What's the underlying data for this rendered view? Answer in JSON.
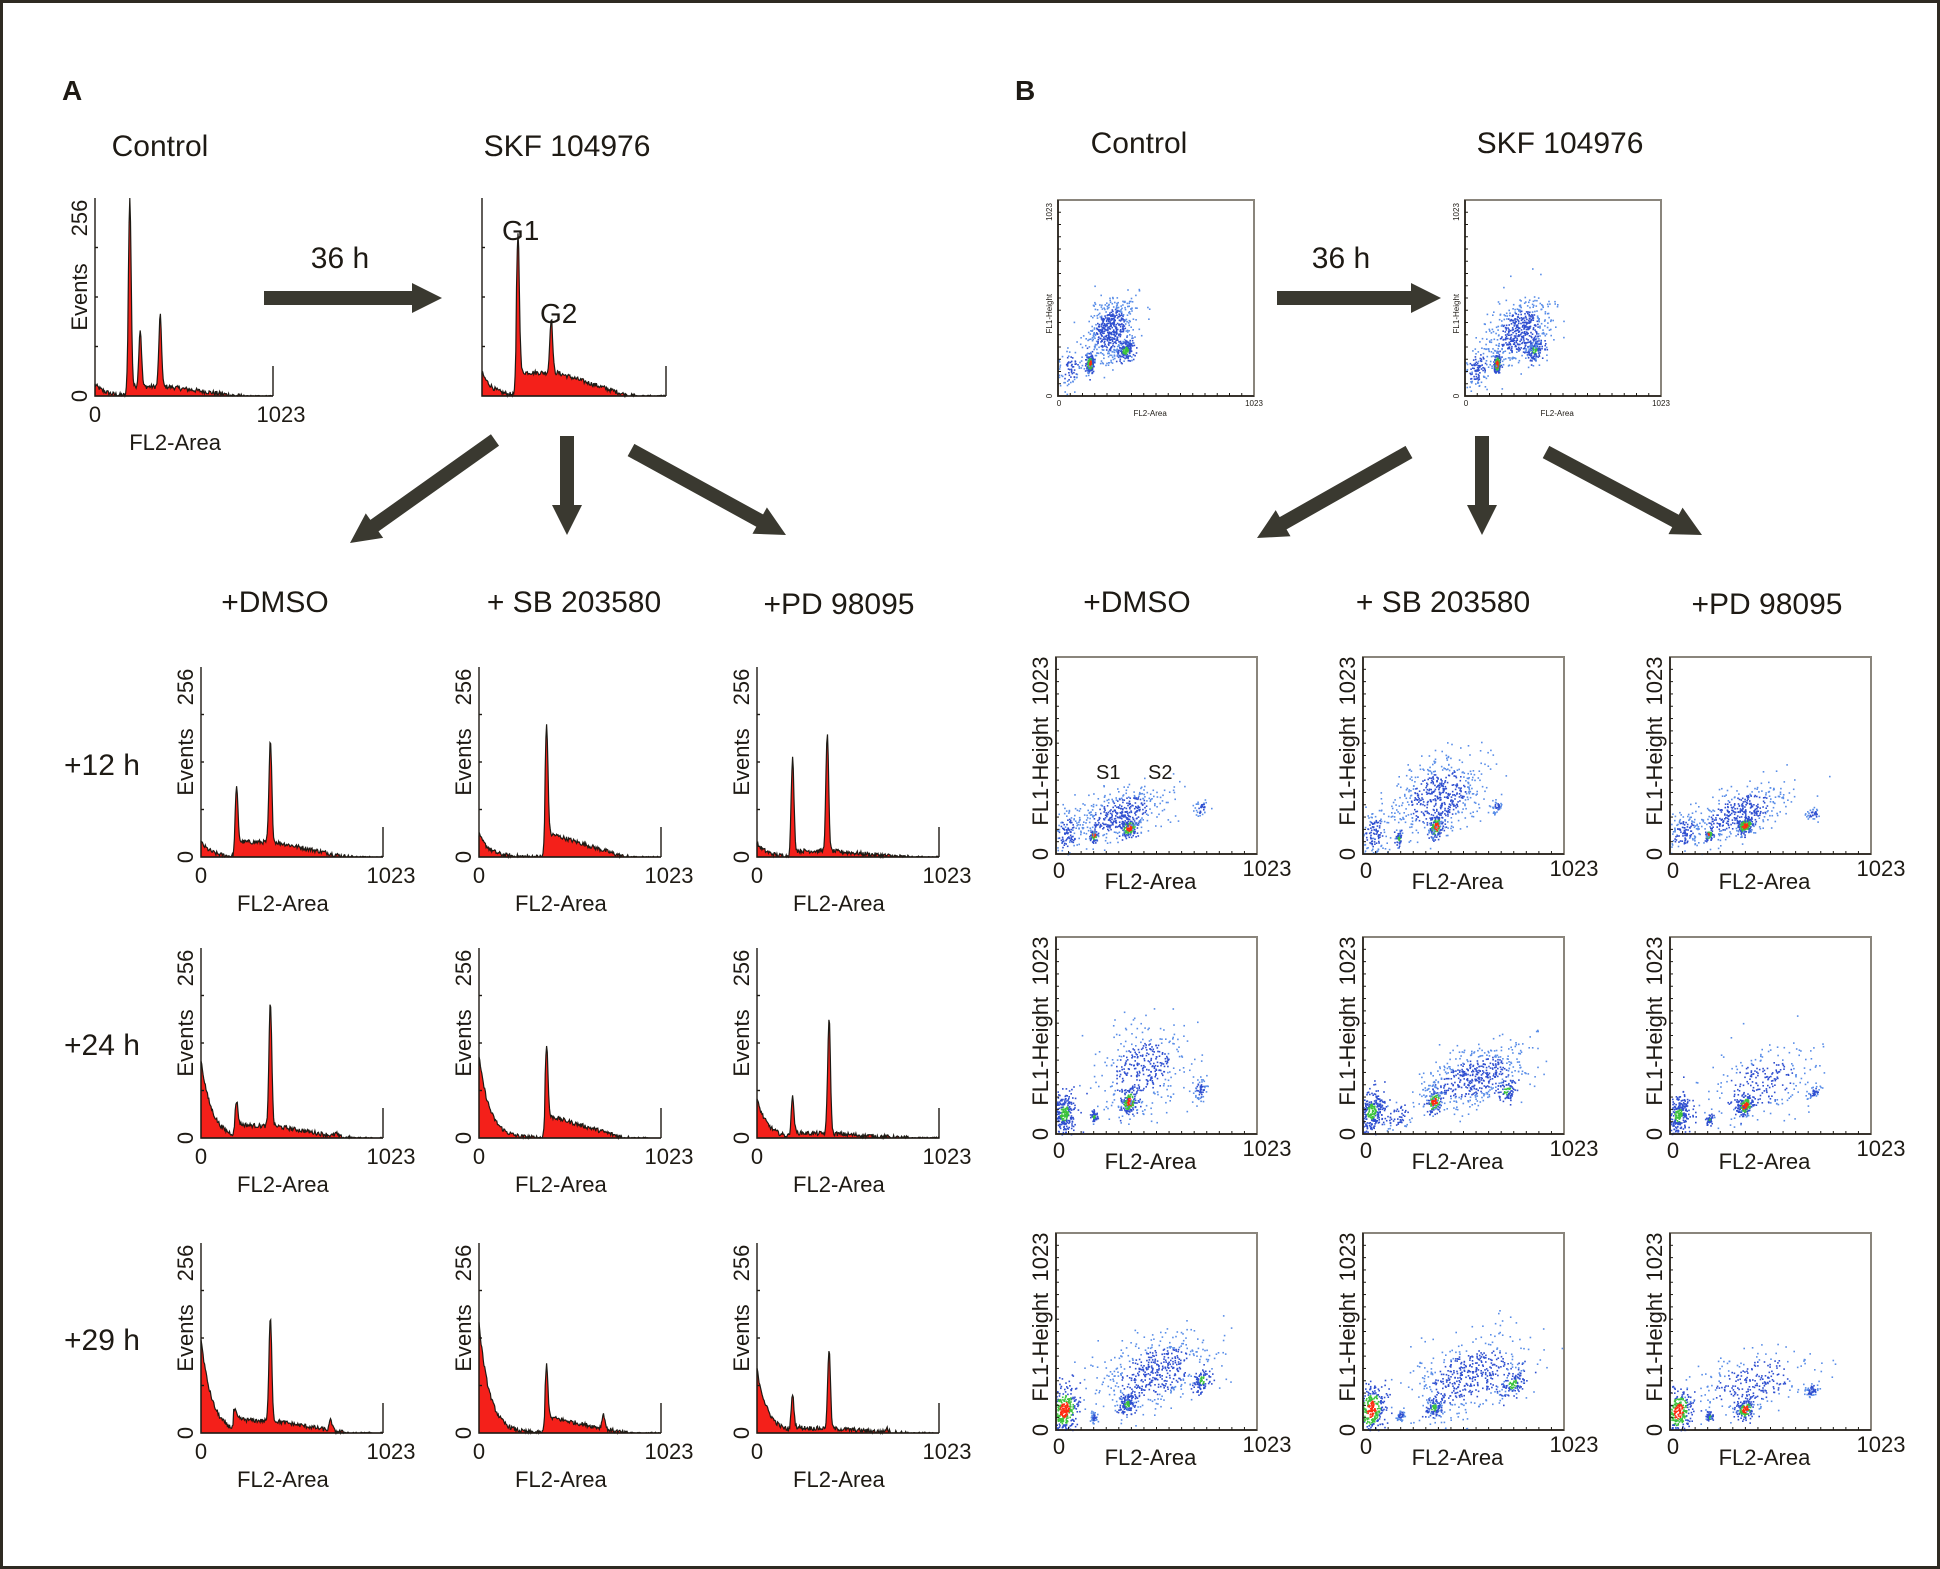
{
  "panel_labels": {
    "a": "A",
    "b": "B"
  },
  "time_label": "36 h",
  "top_titles": {
    "control": "Control",
    "treated": "SKF 104976"
  },
  "column_titles": [
    "+DMSO",
    "+ SB 203580",
    "+PD 98095"
  ],
  "row_labels": [
    "+12 h",
    "+24 h",
    "+29 h"
  ],
  "peak_labels": {
    "g1": "G1",
    "g2": "G2"
  },
  "gate_labels": {
    "s1": "S1",
    "s2": "S2"
  },
  "colors": {
    "histogram_fill": "#f4201a",
    "arrow": "#3a3930",
    "density_low": "#2f4fd0",
    "density_mid": "#3cc23c",
    "density_high": "#ff2a10"
  },
  "chart_data": [
    {
      "panel": "A",
      "type": "area",
      "description": "DNA content histograms (FL2-Area vs Events)",
      "xlabel": "FL2-Area",
      "ylabel": "Events",
      "xlim": [
        0,
        1023
      ],
      "ylim": [
        0,
        256
      ],
      "xticks": [
        "0",
        "1023"
      ],
      "yticks": [
        "0",
        "256"
      ],
      "plots": [
        {
          "id": "control",
          "title": "Control",
          "peaks": [
            {
              "x": 200,
              "y": 250
            },
            {
              "x": 260,
              "y": 80
            },
            {
              "x": 375,
              "y": 98
            }
          ],
          "baseline": 12,
          "subg1": 15
        },
        {
          "id": "skf",
          "title": "SKF 104976",
          "annotations": [
            "G1",
            "G2"
          ],
          "peaks": [
            {
              "x": 200,
              "y": 196
            },
            {
              "x": 385,
              "y": 86
            }
          ],
          "baseline": 30,
          "subg1": 30
        },
        {
          "id": "dmso-12h",
          "column": "+DMSO",
          "row": "+12 h",
          "peaks": [
            {
              "x": 200,
              "y": 82
            },
            {
              "x": 390,
              "y": 146
            }
          ],
          "baseline": 20,
          "subg1": 20
        },
        {
          "id": "sb-12h",
          "column": "+ SB 203580",
          "row": "+12 h",
          "peaks": [
            {
              "x": 380,
              "y": 164
            }
          ],
          "baseline": 30,
          "subg1": 30
        },
        {
          "id": "pd-12h",
          "column": "+PD 98095",
          "row": "+12 h",
          "peaks": [
            {
              "x": 200,
              "y": 128
            },
            {
              "x": 395,
              "y": 160
            }
          ],
          "baseline": 8,
          "subg1": 18
        },
        {
          "id": "dmso-24h",
          "column": "+DMSO",
          "row": "+24 h",
          "peaks": [
            {
              "x": 200,
              "y": 38
            },
            {
              "x": 390,
              "y": 176
            },
            {
              "x": 760,
              "y": 12
            }
          ],
          "baseline": 16,
          "subg1": 106
        },
        {
          "id": "sb-24h",
          "column": "+ SB 203580",
          "row": "+24 h",
          "peaks": [
            {
              "x": 380,
              "y": 112
            }
          ],
          "baseline": 28,
          "subg1": 110
        },
        {
          "id": "pd-24h",
          "column": "+PD 98095",
          "row": "+24 h",
          "peaks": [
            {
              "x": 200,
              "y": 50
            },
            {
              "x": 405,
              "y": 160
            }
          ],
          "baseline": 6,
          "subg1": 52
        },
        {
          "id": "dmso-29h",
          "column": "+DMSO",
          "row": "+29 h",
          "peaks": [
            {
              "x": 190,
              "y": 18
            },
            {
              "x": 390,
              "y": 150
            },
            {
              "x": 730,
              "y": 22
            }
          ],
          "baseline": 16,
          "subg1": 128
        },
        {
          "id": "sb-29h",
          "column": "+ SB 203580",
          "row": "+29 h",
          "peaks": [
            {
              "x": 380,
              "y": 82
            },
            {
              "x": 700,
              "y": 30
            }
          ],
          "baseline": 20,
          "subg1": 148
        },
        {
          "id": "pd-29h",
          "column": "+PD 98095",
          "row": "+29 h",
          "peaks": [
            {
              "x": 200,
              "y": 45
            },
            {
              "x": 405,
              "y": 110
            },
            {
              "x": 730,
              "y": 8
            }
          ],
          "baseline": 6,
          "subg1": 86
        }
      ]
    },
    {
      "panel": "B",
      "type": "scatter",
      "description": "Density dot plots (FL2-Area vs FL1-Height)",
      "xlabel": "FL2-Area",
      "ylabel": "FL1-Height",
      "xlim": [
        0,
        1023
      ],
      "ylim": [
        0,
        1023
      ],
      "xticks": [
        "0",
        "1023"
      ],
      "yticks": [
        "0",
        "1023"
      ],
      "plots": [
        {
          "id": "control",
          "title": "Control",
          "clusters": [
            {
              "x": 165,
              "y": 170,
              "n": 170,
              "sx": 10,
              "sy": 25,
              "d": "high"
            },
            {
              "x": 350,
              "y": 240,
              "n": 160,
              "sx": 24,
              "sy": 28,
              "d": "mid"
            },
            {
              "x": 270,
              "y": 350,
              "n": 520,
              "sx": 60,
              "sy": 80,
              "d": "low"
            },
            {
              "x": 60,
              "y": 150,
              "n": 90,
              "sx": 35,
              "sy": 50,
              "d": "low"
            }
          ]
        },
        {
          "id": "skf",
          "title": "SKF 104976",
          "clusters": [
            {
              "x": 165,
              "y": 170,
              "n": 170,
              "sx": 10,
              "sy": 25,
              "d": "high"
            },
            {
              "x": 360,
              "y": 245,
              "n": 140,
              "sx": 22,
              "sy": 28,
              "d": "mid"
            },
            {
              "x": 280,
              "y": 340,
              "n": 520,
              "sx": 80,
              "sy": 80,
              "d": "low"
            },
            {
              "x": 60,
              "y": 150,
              "n": 110,
              "sx": 35,
              "sy": 55,
              "d": "low"
            }
          ]
        },
        {
          "id": "dmso-12h",
          "column": "+DMSO",
          "row": "+12 h",
          "annotations": [
            "S1",
            "S2"
          ],
          "clusters": [
            {
              "x": 190,
              "y": 100,
              "n": 60,
              "sx": 10,
              "sy": 18,
              "d": "high"
            },
            {
              "x": 370,
              "y": 140,
              "n": 150,
              "sx": 22,
              "sy": 25,
              "d": "high"
            },
            {
              "x": 320,
              "y": 210,
              "n": 420,
              "sx": 110,
              "sy": 60,
              "d": "low"
            },
            {
              "x": 55,
              "y": 110,
              "n": 110,
              "sx": 35,
              "sy": 60,
              "d": "low"
            },
            {
              "x": 740,
              "y": 240,
              "n": 40,
              "sx": 20,
              "sy": 20,
              "d": "low"
            }
          ]
        },
        {
          "id": "sb-12h",
          "column": "+ SB 203580",
          "row": "+12 h",
          "clusters": [
            {
              "x": 180,
              "y": 85,
              "n": 50,
              "sx": 10,
              "sy": 20,
              "d": "mid"
            },
            {
              "x": 370,
              "y": 145,
              "n": 140,
              "sx": 18,
              "sy": 30,
              "d": "high"
            },
            {
              "x": 380,
              "y": 300,
              "n": 540,
              "sx": 110,
              "sy": 100,
              "d": "low"
            },
            {
              "x": 55,
              "y": 110,
              "n": 120,
              "sx": 35,
              "sy": 60,
              "d": "low"
            },
            {
              "x": 680,
              "y": 250,
              "n": 40,
              "sx": 15,
              "sy": 15,
              "d": "low"
            }
          ]
        },
        {
          "id": "pd-12h",
          "column": "+PD 98095",
          "row": "+12 h",
          "clusters": [
            {
              "x": 195,
              "y": 100,
              "n": 70,
              "sx": 10,
              "sy": 15,
              "d": "high"
            },
            {
              "x": 380,
              "y": 150,
              "n": 170,
              "sx": 22,
              "sy": 22,
              "d": "high"
            },
            {
              "x": 350,
              "y": 220,
              "n": 380,
              "sx": 120,
              "sy": 60,
              "d": "low"
            },
            {
              "x": 70,
              "y": 110,
              "n": 120,
              "sx": 40,
              "sy": 50,
              "d": "low"
            },
            {
              "x": 730,
              "y": 210,
              "n": 35,
              "sx": 18,
              "sy": 15,
              "d": "low"
            }
          ]
        },
        {
          "id": "dmso-24h",
          "column": "+DMSO",
          "row": "+24 h",
          "clusters": [
            {
              "x": 40,
              "y": 110,
              "n": 260,
              "sx": 30,
              "sy": 55,
              "d": "mid"
            },
            {
              "x": 190,
              "y": 95,
              "n": 50,
              "sx": 8,
              "sy": 15,
              "d": "mid"
            },
            {
              "x": 370,
              "y": 170,
              "n": 160,
              "sx": 20,
              "sy": 30,
              "d": "high"
            },
            {
              "x": 430,
              "y": 330,
              "n": 380,
              "sx": 110,
              "sy": 110,
              "d": "low"
            },
            {
              "x": 730,
              "y": 230,
              "n": 60,
              "sx": 18,
              "sy": 30,
              "d": "low"
            }
          ]
        },
        {
          "id": "sb-24h",
          "column": "+ SB 203580",
          "row": "+24 h",
          "clusters": [
            {
              "x": 40,
              "y": 120,
              "n": 280,
              "sx": 35,
              "sy": 55,
              "d": "mid"
            },
            {
              "x": 360,
              "y": 170,
              "n": 120,
              "sx": 20,
              "sy": 30,
              "d": "high"
            },
            {
              "x": 560,
              "y": 300,
              "n": 520,
              "sx": 130,
              "sy": 70,
              "d": "low"
            },
            {
              "x": 730,
              "y": 230,
              "n": 80,
              "sx": 25,
              "sy": 30,
              "d": "mid"
            },
            {
              "x": 180,
              "y": 100,
              "n": 60,
              "sx": 50,
              "sy": 40,
              "d": "low"
            }
          ]
        },
        {
          "id": "pd-24h",
          "column": "+PD 98095",
          "row": "+24 h",
          "clusters": [
            {
              "x": 40,
              "y": 100,
              "n": 250,
              "sx": 30,
              "sy": 50,
              "d": "mid"
            },
            {
              "x": 200,
              "y": 80,
              "n": 50,
              "sx": 8,
              "sy": 14,
              "d": "mid"
            },
            {
              "x": 380,
              "y": 150,
              "n": 150,
              "sx": 20,
              "sy": 25,
              "d": "high"
            },
            {
              "x": 450,
              "y": 260,
              "n": 260,
              "sx": 140,
              "sy": 90,
              "d": "low"
            },
            {
              "x": 730,
              "y": 220,
              "n": 40,
              "sx": 18,
              "sy": 15,
              "d": "low"
            }
          ]
        },
        {
          "id": "dmso-29h",
          "column": "+DMSO",
          "row": "+29 h",
          "clusters": [
            {
              "x": 40,
              "y": 110,
              "n": 320,
              "sx": 35,
              "sy": 60,
              "d": "high"
            },
            {
              "x": 190,
              "y": 70,
              "n": 40,
              "sx": 8,
              "sy": 14,
              "d": "low"
            },
            {
              "x": 360,
              "y": 140,
              "n": 130,
              "sx": 20,
              "sy": 28,
              "d": "mid"
            },
            {
              "x": 500,
              "y": 300,
              "n": 480,
              "sx": 140,
              "sy": 90,
              "d": "low"
            },
            {
              "x": 740,
              "y": 260,
              "n": 90,
              "sx": 22,
              "sy": 30,
              "d": "mid"
            }
          ]
        },
        {
          "id": "sb-29h",
          "column": "+ SB 203580",
          "row": "+29 h",
          "clusters": [
            {
              "x": 40,
              "y": 110,
              "n": 320,
              "sx": 35,
              "sy": 60,
              "d": "high"
            },
            {
              "x": 190,
              "y": 80,
              "n": 40,
              "sx": 10,
              "sy": 15,
              "d": "low"
            },
            {
              "x": 360,
              "y": 120,
              "n": 110,
              "sx": 20,
              "sy": 25,
              "d": "mid"
            },
            {
              "x": 540,
              "y": 280,
              "n": 480,
              "sx": 150,
              "sy": 100,
              "d": "low"
            },
            {
              "x": 760,
              "y": 240,
              "n": 100,
              "sx": 30,
              "sy": 35,
              "d": "mid"
            }
          ]
        },
        {
          "id": "pd-29h",
          "column": "+PD 98095",
          "row": "+29 h",
          "clusters": [
            {
              "x": 40,
              "y": 100,
              "n": 280,
              "sx": 35,
              "sy": 55,
              "d": "high"
            },
            {
              "x": 200,
              "y": 70,
              "n": 50,
              "sx": 9,
              "sy": 14,
              "d": "mid"
            },
            {
              "x": 380,
              "y": 110,
              "n": 150,
              "sx": 22,
              "sy": 25,
              "d": "high"
            },
            {
              "x": 420,
              "y": 250,
              "n": 260,
              "sx": 150,
              "sy": 80,
              "d": "low"
            },
            {
              "x": 720,
              "y": 210,
              "n": 50,
              "sx": 18,
              "sy": 18,
              "d": "low"
            }
          ]
        }
      ]
    }
  ]
}
